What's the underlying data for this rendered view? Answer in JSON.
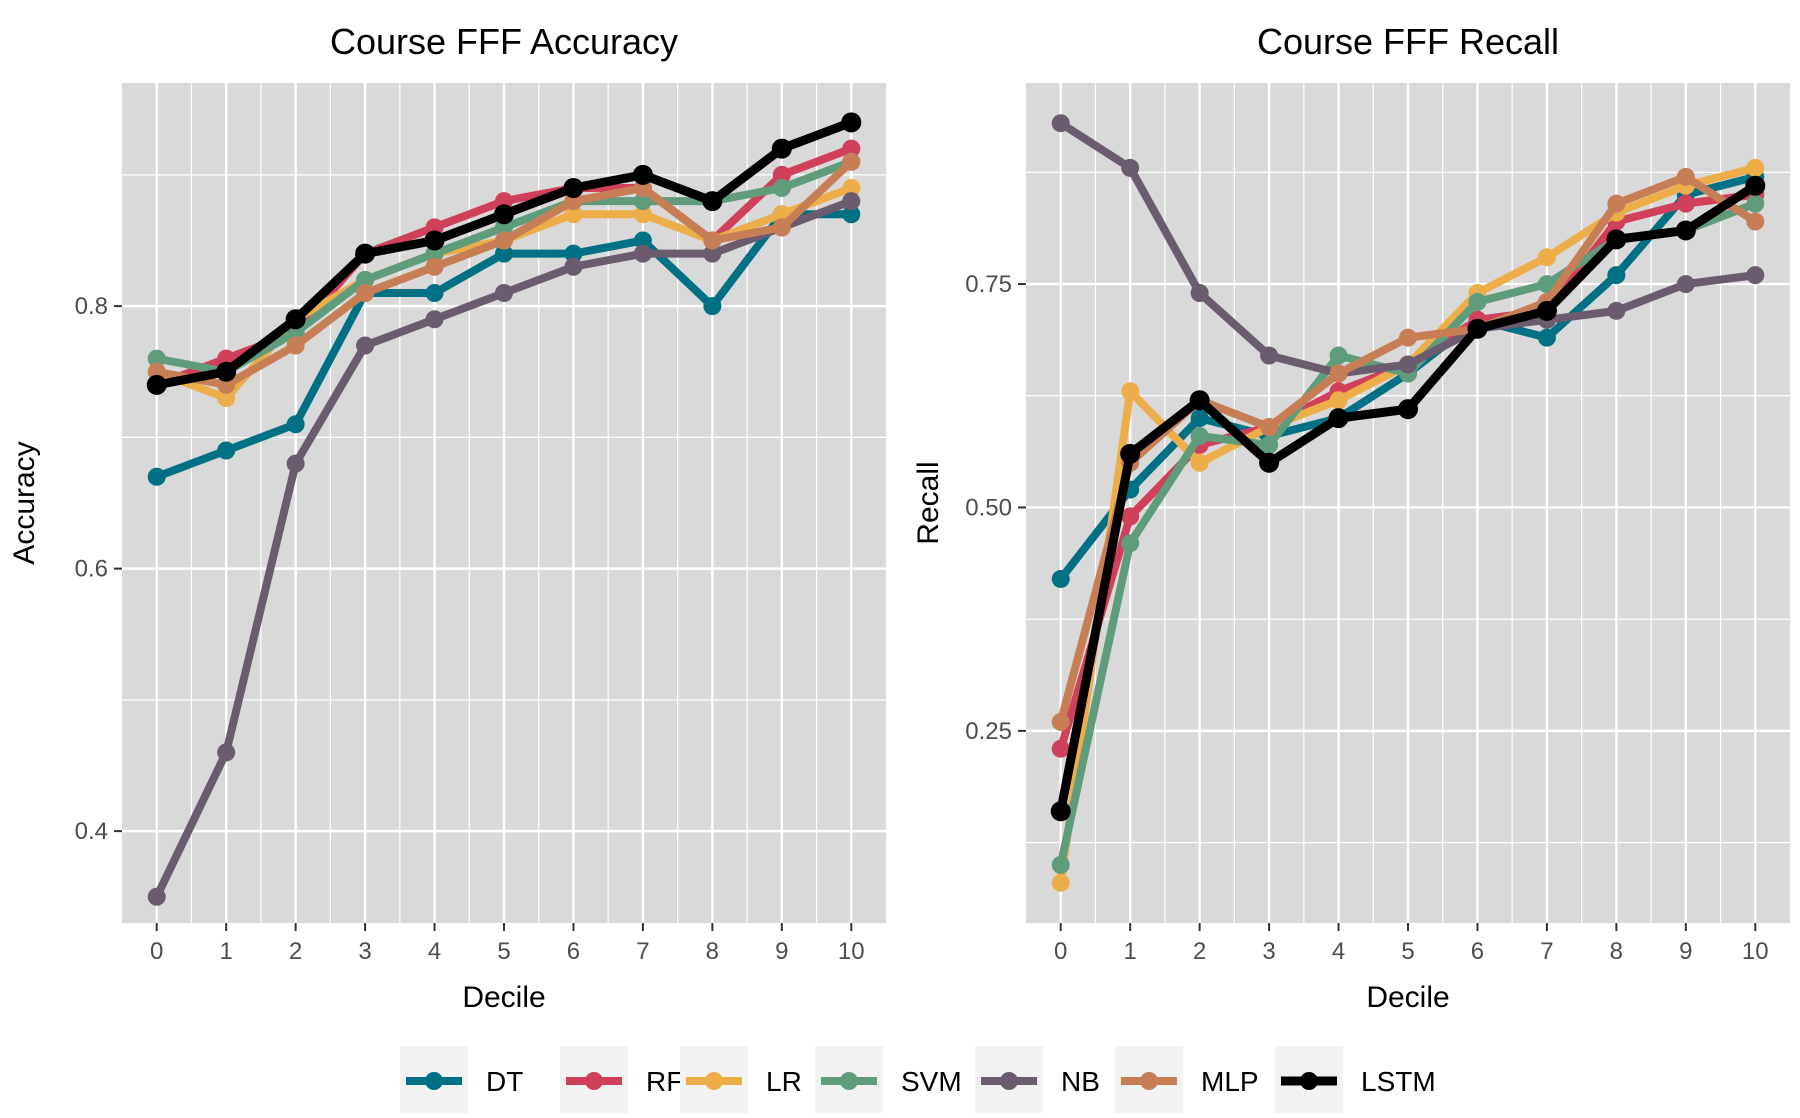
{
  "chart_data": [
    {
      "type": "line",
      "title": "Course FFF Accuracy",
      "xlabel": "Decile",
      "ylabel": "Accuracy",
      "xlim": [
        -0.5,
        10.5
      ],
      "ylim": [
        0.33,
        0.97
      ],
      "xticks": [
        0,
        1,
        2,
        3,
        4,
        5,
        6,
        7,
        8,
        9,
        10
      ],
      "xtick_labels": [
        "0",
        "1",
        "2",
        "3",
        "4",
        "5",
        "6",
        "7",
        "8",
        "9",
        "10"
      ],
      "yticks": [
        0.4,
        0.6,
        0.8
      ],
      "ytick_labels": [
        "0.4",
        "0.6",
        "0.8"
      ],
      "grid": true,
      "x": [
        0,
        1,
        2,
        3,
        4,
        5,
        6,
        7,
        8,
        9,
        10
      ],
      "series": [
        {
          "name": "DT",
          "values": [
            0.67,
            0.69,
            0.71,
            0.81,
            0.81,
            0.84,
            0.84,
            0.85,
            0.8,
            0.87,
            0.87
          ]
        },
        {
          "name": "RF",
          "values": [
            0.74,
            0.76,
            0.78,
            0.84,
            0.86,
            0.88,
            0.89,
            0.89,
            0.85,
            0.9,
            0.92
          ]
        },
        {
          "name": "LR",
          "values": [
            0.75,
            0.73,
            0.79,
            0.82,
            0.84,
            0.85,
            0.87,
            0.87,
            0.85,
            0.87,
            0.89
          ]
        },
        {
          "name": "SVM",
          "values": [
            0.76,
            0.75,
            0.78,
            0.82,
            0.84,
            0.86,
            0.88,
            0.88,
            0.88,
            0.89,
            0.91
          ]
        },
        {
          "name": "NB",
          "values": [
            0.35,
            0.46,
            0.68,
            0.77,
            0.79,
            0.81,
            0.83,
            0.84,
            0.84,
            0.86,
            0.88
          ]
        },
        {
          "name": "MLP",
          "values": [
            0.75,
            0.74,
            0.77,
            0.81,
            0.83,
            0.85,
            0.88,
            0.89,
            0.85,
            0.86,
            0.91
          ]
        },
        {
          "name": "LSTM",
          "values": [
            0.74,
            0.75,
            0.79,
            0.84,
            0.85,
            0.87,
            0.89,
            0.9,
            0.88,
            0.92,
            0.94
          ]
        }
      ]
    },
    {
      "type": "line",
      "title": "Course FFF Recall",
      "xlabel": "Decile",
      "ylabel": "Recall",
      "xlim": [
        -0.5,
        10.5
      ],
      "ylim": [
        0.035,
        0.975
      ],
      "xticks": [
        0,
        1,
        2,
        3,
        4,
        5,
        6,
        7,
        8,
        9,
        10
      ],
      "xtick_labels": [
        "0",
        "1",
        "2",
        "3",
        "4",
        "5",
        "6",
        "7",
        "8",
        "9",
        "10"
      ],
      "yticks": [
        0.25,
        0.5,
        0.75
      ],
      "ytick_labels": [
        "0.25",
        "0.50",
        "0.75"
      ],
      "grid": true,
      "x": [
        0,
        1,
        2,
        3,
        4,
        5,
        6,
        7,
        8,
        9,
        10
      ],
      "series": [
        {
          "name": "DT",
          "values": [
            0.42,
            0.52,
            0.6,
            0.58,
            0.6,
            0.65,
            0.71,
            0.69,
            0.76,
            0.85,
            0.87
          ]
        },
        {
          "name": "RF",
          "values": [
            0.23,
            0.49,
            0.57,
            0.59,
            0.63,
            0.66,
            0.71,
            0.72,
            0.82,
            0.84,
            0.85
          ]
        },
        {
          "name": "LR",
          "values": [
            0.08,
            0.63,
            0.55,
            0.59,
            0.62,
            0.66,
            0.74,
            0.78,
            0.83,
            0.86,
            0.88
          ]
        },
        {
          "name": "SVM",
          "values": [
            0.1,
            0.46,
            0.58,
            0.57,
            0.67,
            0.65,
            0.73,
            0.75,
            0.8,
            0.81,
            0.84
          ]
        },
        {
          "name": "NB",
          "values": [
            0.93,
            0.88,
            0.74,
            0.67,
            0.65,
            0.66,
            0.7,
            0.71,
            0.72,
            0.75,
            0.76
          ]
        },
        {
          "name": "MLP",
          "values": [
            0.26,
            0.55,
            0.62,
            0.59,
            0.65,
            0.69,
            0.7,
            0.73,
            0.84,
            0.87,
            0.82
          ]
        },
        {
          "name": "LSTM",
          "values": [
            0.16,
            0.56,
            0.62,
            0.55,
            0.6,
            0.61,
            0.7,
            0.72,
            0.8,
            0.81,
            0.86
          ]
        }
      ]
    }
  ],
  "legend": {
    "placement": "bottom",
    "items": [
      {
        "name": "DT",
        "color": "#007185"
      },
      {
        "name": "RF",
        "color": "#D1405A"
      },
      {
        "name": "LR",
        "color": "#EDAE49"
      },
      {
        "name": "SVM",
        "color": "#5E9C7C"
      },
      {
        "name": "NB",
        "color": "#6B5B6E"
      },
      {
        "name": "MLP",
        "color": "#C77E55"
      },
      {
        "name": "LSTM",
        "color": "#000000"
      }
    ]
  },
  "colors": {
    "panel_background": "#D9D9D9",
    "grid": "#FFFFFF",
    "axis_text": "#4D4D4D",
    "title_text": "#000000"
  }
}
